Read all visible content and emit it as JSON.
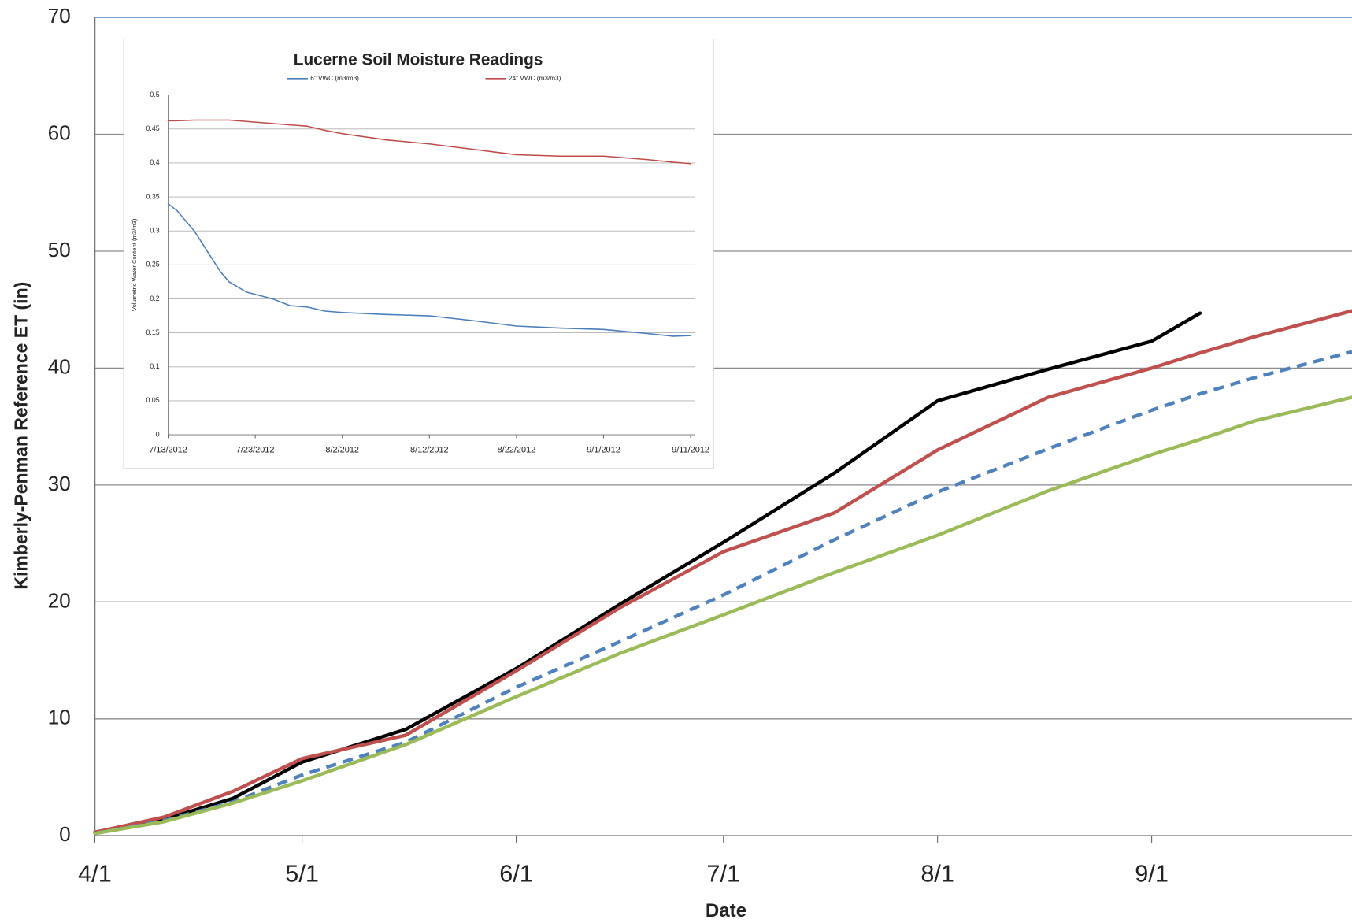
{
  "chart_data": [
    {
      "type": "line",
      "xlabel": "Date",
      "ylabel": "Kimberly-Penman Reference ET (in)",
      "x": [
        0,
        10,
        20,
        30,
        45,
        61,
        76,
        91,
        107,
        122,
        138,
        153,
        160,
        168,
        182
      ],
      "xlim": [
        0,
        182
      ],
      "xticks": [
        {
          "value": 0,
          "label": "4/1"
        },
        {
          "value": 30,
          "label": "5/1"
        },
        {
          "value": 61,
          "label": "6/1"
        },
        {
          "value": 91,
          "label": "7/1"
        },
        {
          "value": 122,
          "label": "8/1"
        },
        {
          "value": 153,
          "label": "9/1"
        }
      ],
      "ylim": [
        0,
        70
      ],
      "yticks": [
        0,
        10,
        20,
        30,
        40,
        50,
        60,
        70
      ],
      "grid": true,
      "series": [
        {
          "color": "#000000",
          "values": [
            0.3,
            1.4,
            3.2,
            6.3,
            9.1,
            14.3,
            19.8,
            25.1,
            31.0,
            37.2,
            39.9,
            42.3,
            44.7,
            null,
            null
          ]
        },
        {
          "color": "#c0504d",
          "values": [
            0.3,
            1.6,
            3.8,
            6.6,
            8.6,
            14.1,
            19.5,
            24.3,
            27.6,
            33.0,
            37.5,
            40.0,
            41.3,
            42.7,
            44.9
          ]
        },
        {
          "color": "#4f81bd",
          "line_style": "dashed",
          "values": [
            0.2,
            1.3,
            2.9,
            5.2,
            8.0,
            12.7,
            16.6,
            20.6,
            25.3,
            29.4,
            33.1,
            36.4,
            37.8,
            39.2,
            41.4
          ]
        },
        {
          "color": "#9bbb59",
          "values": [
            0.2,
            1.2,
            2.8,
            4.7,
            7.8,
            11.9,
            15.6,
            18.9,
            22.5,
            25.7,
            29.5,
            32.6,
            33.9,
            35.5,
            37.5
          ]
        }
      ]
    },
    {
      "type": "line",
      "title": "Lucerne Soil Moisture Readings",
      "ylabel": "Volumetric Water Content (m3/m3)",
      "x": [
        0,
        1,
        3,
        5,
        6,
        7,
        9,
        12,
        14,
        16,
        18,
        20,
        25,
        30,
        35,
        40,
        45,
        50,
        55,
        58,
        60
      ],
      "xlim": [
        0,
        60
      ],
      "xticks": [
        {
          "value": 0,
          "label": "7/13/2012"
        },
        {
          "value": 10,
          "label": "7/23/2012"
        },
        {
          "value": 20,
          "label": "8/2/2012"
        },
        {
          "value": 30,
          "label": "8/12/2012"
        },
        {
          "value": 40,
          "label": "8/22/2012"
        },
        {
          "value": 50,
          "label": "9/1/2012"
        },
        {
          "value": 60,
          "label": "9/11/2012"
        }
      ],
      "ylim": [
        0,
        0.5
      ],
      "yticks": [
        0,
        0.05,
        0.1,
        0.15,
        0.2,
        0.25,
        0.3,
        0.35,
        0.4,
        0.45,
        0.5
      ],
      "grid": true,
      "series": [
        {
          "name": "6\" VWC (m3/m3)",
          "color": "#4a7ebb",
          "values": [
            0.34,
            0.33,
            0.3,
            0.26,
            0.24,
            0.225,
            0.21,
            0.2,
            0.19,
            0.188,
            0.182,
            0.18,
            0.177,
            0.175,
            0.168,
            0.16,
            0.157,
            0.155,
            0.149,
            0.145,
            0.146
          ]
        },
        {
          "name": "24\" VWC (m3/m3)",
          "color": "#be4b48",
          "values": [
            0.462,
            0.462,
            0.463,
            0.463,
            0.463,
            0.463,
            0.461,
            0.458,
            0.456,
            0.454,
            0.448,
            0.443,
            0.434,
            0.428,
            0.42,
            0.412,
            0.41,
            0.41,
            0.405,
            0.401,
            0.399
          ]
        }
      ]
    }
  ]
}
